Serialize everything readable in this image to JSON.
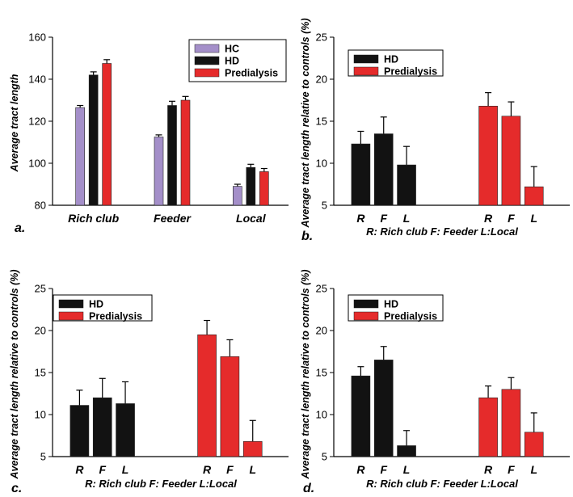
{
  "colors": {
    "HC": "#a48fc9",
    "HD": "#121212",
    "Predialysis": "#e52b2b",
    "axis": "#000000"
  },
  "chart_data": [
    {
      "type": "bar",
      "panel": "a.",
      "ylabel": "Average tract length",
      "ylim": [
        80,
        160
      ],
      "yticks": [
        80,
        100,
        120,
        140,
        160
      ],
      "categories": [
        "Rich club",
        "Feeder",
        "Local"
      ],
      "legend": [
        "HC",
        "HD",
        "Predialysis"
      ],
      "legend_position": "top-right",
      "series": [
        {
          "name": "HC",
          "values": [
            126.5,
            112.5,
            89
          ],
          "errors": [
            1,
            1,
            1
          ]
        },
        {
          "name": "HD",
          "values": [
            142,
            127.5,
            98
          ],
          "errors": [
            1.5,
            2,
            1.5
          ]
        },
        {
          "name": "Predialysis",
          "values": [
            147.5,
            130,
            96
          ],
          "errors": [
            1.8,
            1.8,
            1.5
          ]
        }
      ]
    },
    {
      "type": "bar",
      "panel": "b.",
      "ylabel": "Average tract length relative to controls (%)",
      "ylim": [
        5,
        25
      ],
      "yticks": [
        5,
        10,
        15,
        20,
        25
      ],
      "legend": [
        "HD",
        "Predialysis"
      ],
      "legend_position": "top-left",
      "xnote": "R: Rich club   F: Feeder   L:Local",
      "groups": [
        {
          "name": "HD",
          "categories": [
            "R",
            "F",
            "L"
          ],
          "values": [
            12.3,
            13.5,
            9.8
          ],
          "errors": [
            1.5,
            2,
            2.2
          ]
        },
        {
          "name": "Predialysis",
          "categories": [
            "R",
            "F",
            "L"
          ],
          "values": [
            16.8,
            15.6,
            7.2
          ],
          "errors": [
            1.6,
            1.7,
            2.4
          ]
        }
      ]
    },
    {
      "type": "bar",
      "panel": "c.",
      "ylabel": "Average tract length relative to controls (%)",
      "ylim": [
        5,
        25
      ],
      "yticks": [
        5,
        10,
        15,
        20,
        25
      ],
      "legend": [
        "HD",
        "Predialysis"
      ],
      "legend_position": "top-left",
      "xnote": "R: Rich club   F: Feeder   L:Local",
      "groups": [
        {
          "name": "HD",
          "categories": [
            "R",
            "F",
            "L"
          ],
          "values": [
            11.1,
            12,
            11.3
          ],
          "errors": [
            1.8,
            2.3,
            2.6
          ]
        },
        {
          "name": "Predialysis",
          "categories": [
            "R",
            "F",
            "L"
          ],
          "values": [
            19.5,
            16.9,
            6.8
          ],
          "errors": [
            1.7,
            2,
            2.5
          ]
        }
      ]
    },
    {
      "type": "bar",
      "panel": "d.",
      "ylabel": "Average tract length relative to controls (%)",
      "ylim": [
        5,
        25
      ],
      "yticks": [
        5,
        10,
        15,
        20,
        25
      ],
      "legend": [
        "HD",
        "Predialysis"
      ],
      "legend_position": "top-left",
      "xnote": "R: Rich club   F: Feeder   L:Local",
      "groups": [
        {
          "name": "HD",
          "categories": [
            "R",
            "F",
            "L"
          ],
          "values": [
            14.6,
            16.5,
            6.3
          ],
          "errors": [
            1.1,
            1.6,
            1.8
          ]
        },
        {
          "name": "Predialysis",
          "categories": [
            "R",
            "F",
            "L"
          ],
          "values": [
            12,
            13,
            7.9
          ],
          "errors": [
            1.4,
            1.4,
            2.3
          ]
        }
      ]
    }
  ]
}
